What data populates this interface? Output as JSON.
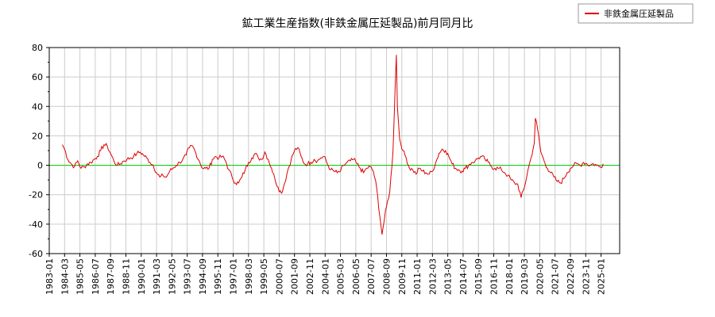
{
  "chart_data": {
    "type": "line",
    "title": "鉱工業生産指数(非鉄金属圧延製品)前月同月比",
    "xlabel": "",
    "ylabel": "",
    "ylim": [
      -60,
      80
    ],
    "yticks": [
      -60,
      -40,
      -20,
      0,
      20,
      40,
      60,
      80
    ],
    "ytick_labels": [
      "-60",
      "-40",
      "-20",
      "0",
      "20",
      "40",
      "60",
      "80"
    ],
    "xlim": [
      "1983-01",
      "2026-06"
    ],
    "xtick_labels": [
      "1983-01",
      "1984-03",
      "1985-05",
      "1986-07",
      "1987-09",
      "1988-11",
      "1990-01",
      "1991-03",
      "1992-05",
      "1993-07",
      "1994-09",
      "1995-11",
      "1997-01",
      "1998-03",
      "1999-05",
      "2000-07",
      "2001-09",
      "2002-11",
      "2004-01",
      "2005-03",
      "2006-05",
      "2007-07",
      "2008-09",
      "2009-11",
      "2011-01",
      "2012-03",
      "2013-05",
      "2014-07",
      "2015-09",
      "2016-11",
      "2018-01",
      "2019-03",
      "2020-05",
      "2021-07",
      "2022-09",
      "2023-11",
      "2025-01"
    ],
    "grid": true,
    "legend_position": "top-right",
    "reference_line": {
      "y": 0,
      "color": "#00cc00"
    },
    "series": [
      {
        "name": "非鉄金属圧延製品",
        "color": "#dd0000",
        "points": [
          [
            "1984-01",
            14
          ],
          [
            "1984-03",
            11
          ],
          [
            "1984-06",
            4
          ],
          [
            "1984-09",
            1
          ],
          [
            "1984-12",
            -1
          ],
          [
            "1985-03",
            3
          ],
          [
            "1985-06",
            -2
          ],
          [
            "1985-09",
            -1
          ],
          [
            "1985-12",
            1
          ],
          [
            "1986-03",
            2
          ],
          [
            "1986-06",
            4
          ],
          [
            "1986-09",
            6
          ],
          [
            "1986-12",
            10
          ],
          [
            "1987-03",
            14
          ],
          [
            "1987-06",
            13
          ],
          [
            "1987-09",
            8
          ],
          [
            "1987-12",
            3
          ],
          [
            "1988-03",
            0
          ],
          [
            "1988-06",
            1
          ],
          [
            "1988-09",
            3
          ],
          [
            "1988-12",
            4
          ],
          [
            "1989-03",
            5
          ],
          [
            "1989-06",
            6
          ],
          [
            "1989-09",
            8
          ],
          [
            "1989-12",
            9
          ],
          [
            "1990-03",
            7
          ],
          [
            "1990-06",
            5
          ],
          [
            "1990-09",
            2
          ],
          [
            "1990-12",
            0
          ],
          [
            "1991-03",
            -5
          ],
          [
            "1991-06",
            -8
          ],
          [
            "1991-09",
            -7
          ],
          [
            "1991-12",
            -8
          ],
          [
            "1992-03",
            -4
          ],
          [
            "1992-06",
            -2
          ],
          [
            "1992-09",
            0
          ],
          [
            "1992-12",
            2
          ],
          [
            "1993-03",
            4
          ],
          [
            "1993-06",
            7
          ],
          [
            "1993-09",
            12
          ],
          [
            "1993-12",
            13
          ],
          [
            "1994-03",
            8
          ],
          [
            "1994-06",
            3
          ],
          [
            "1994-09",
            -2
          ],
          [
            "1994-12",
            -2
          ],
          [
            "1995-03",
            -2
          ],
          [
            "1995-06",
            4
          ],
          [
            "1995-09",
            6
          ],
          [
            "1995-12",
            5
          ],
          [
            "1996-03",
            6
          ],
          [
            "1996-06",
            3
          ],
          [
            "1996-09",
            -3
          ],
          [
            "1996-12",
            -8
          ],
          [
            "1997-03",
            -12
          ],
          [
            "1997-06",
            -12
          ],
          [
            "1997-09",
            -8
          ],
          [
            "1997-12",
            -3
          ],
          [
            "1998-03",
            2
          ],
          [
            "1998-06",
            5
          ],
          [
            "1998-09",
            8
          ],
          [
            "1998-12",
            5
          ],
          [
            "1999-03",
            4
          ],
          [
            "1999-06",
            9
          ],
          [
            "1999-09",
            4
          ],
          [
            "1999-12",
            -2
          ],
          [
            "2000-03",
            -9
          ],
          [
            "2000-06",
            -15
          ],
          [
            "2000-09",
            -19
          ],
          [
            "2000-12",
            -12
          ],
          [
            "2001-03",
            -3
          ],
          [
            "2001-06",
            4
          ],
          [
            "2001-09",
            10
          ],
          [
            "2001-12",
            12
          ],
          [
            "2002-03",
            6
          ],
          [
            "2002-06",
            1
          ],
          [
            "2002-09",
            1
          ],
          [
            "2002-12",
            2
          ],
          [
            "2003-03",
            4
          ],
          [
            "2003-06",
            3
          ],
          [
            "2003-09",
            5
          ],
          [
            "2003-12",
            6
          ],
          [
            "2004-03",
            1
          ],
          [
            "2004-06",
            -3
          ],
          [
            "2004-09",
            -4
          ],
          [
            "2004-12",
            -5
          ],
          [
            "2005-03",
            -4
          ],
          [
            "2005-06",
            0
          ],
          [
            "2005-09",
            2
          ],
          [
            "2005-12",
            3
          ],
          [
            "2006-03",
            4
          ],
          [
            "2006-06",
            1
          ],
          [
            "2006-09",
            -2
          ],
          [
            "2006-12",
            -5
          ],
          [
            "2007-03",
            -2
          ],
          [
            "2007-06",
            -1
          ],
          [
            "2007-09",
            -4
          ],
          [
            "2007-12",
            -15
          ],
          [
            "2008-03",
            -35
          ],
          [
            "2008-05",
            -47
          ],
          [
            "2008-06",
            -42
          ],
          [
            "2008-09",
            -28
          ],
          [
            "2008-12",
            -18
          ],
          [
            "2009-03",
            10
          ],
          [
            "2009-05",
            55
          ],
          [
            "2009-06",
            75
          ],
          [
            "2009-07",
            40
          ],
          [
            "2009-09",
            18
          ],
          [
            "2009-12",
            10
          ],
          [
            "2010-03",
            5
          ],
          [
            "2010-06",
            -2
          ],
          [
            "2010-09",
            -3
          ],
          [
            "2010-12",
            -6
          ],
          [
            "2011-03",
            -2
          ],
          [
            "2011-06",
            -4
          ],
          [
            "2011-09",
            -5
          ],
          [
            "2011-12",
            -6
          ],
          [
            "2012-03",
            -4
          ],
          [
            "2012-06",
            2
          ],
          [
            "2012-09",
            8
          ],
          [
            "2012-12",
            11
          ],
          [
            "2013-03",
            10
          ],
          [
            "2013-06",
            6
          ],
          [
            "2013-09",
            1
          ],
          [
            "2013-12",
            -2
          ],
          [
            "2014-03",
            -3
          ],
          [
            "2014-06",
            -4
          ],
          [
            "2014-09",
            -2
          ],
          [
            "2014-12",
            0
          ],
          [
            "2015-03",
            2
          ],
          [
            "2015-06",
            3
          ],
          [
            "2015-09",
            5
          ],
          [
            "2015-12",
            6
          ],
          [
            "2016-03",
            4
          ],
          [
            "2016-06",
            2
          ],
          [
            "2016-09",
            -1
          ],
          [
            "2016-12",
            -2
          ],
          [
            "2017-03",
            -2
          ],
          [
            "2017-06",
            -3
          ],
          [
            "2017-09",
            -5
          ],
          [
            "2017-12",
            -7
          ],
          [
            "2018-03",
            -10
          ],
          [
            "2018-06",
            -12
          ],
          [
            "2018-09",
            -13
          ],
          [
            "2018-12",
            -22
          ],
          [
            "2019-03",
            -15
          ],
          [
            "2019-06",
            -4
          ],
          [
            "2019-09",
            5
          ],
          [
            "2019-12",
            15
          ],
          [
            "2020-01",
            32
          ],
          [
            "2020-03",
            25
          ],
          [
            "2020-06",
            9
          ],
          [
            "2020-09",
            3
          ],
          [
            "2020-12",
            -2
          ],
          [
            "2021-03",
            -5
          ],
          [
            "2021-06",
            -8
          ],
          [
            "2021-09",
            -11
          ],
          [
            "2021-12",
            -12
          ],
          [
            "2022-03",
            -9
          ],
          [
            "2022-06",
            -5
          ],
          [
            "2022-09",
            -2
          ],
          [
            "2022-12",
            0
          ],
          [
            "2023-03",
            1
          ],
          [
            "2023-06",
            0
          ],
          [
            "2023-09",
            2
          ],
          [
            "2023-12",
            1
          ],
          [
            "2024-03",
            0
          ],
          [
            "2024-06",
            1
          ],
          [
            "2024-09",
            0
          ],
          [
            "2024-12",
            -1
          ],
          [
            "2025-03",
            1
          ]
        ]
      }
    ]
  }
}
